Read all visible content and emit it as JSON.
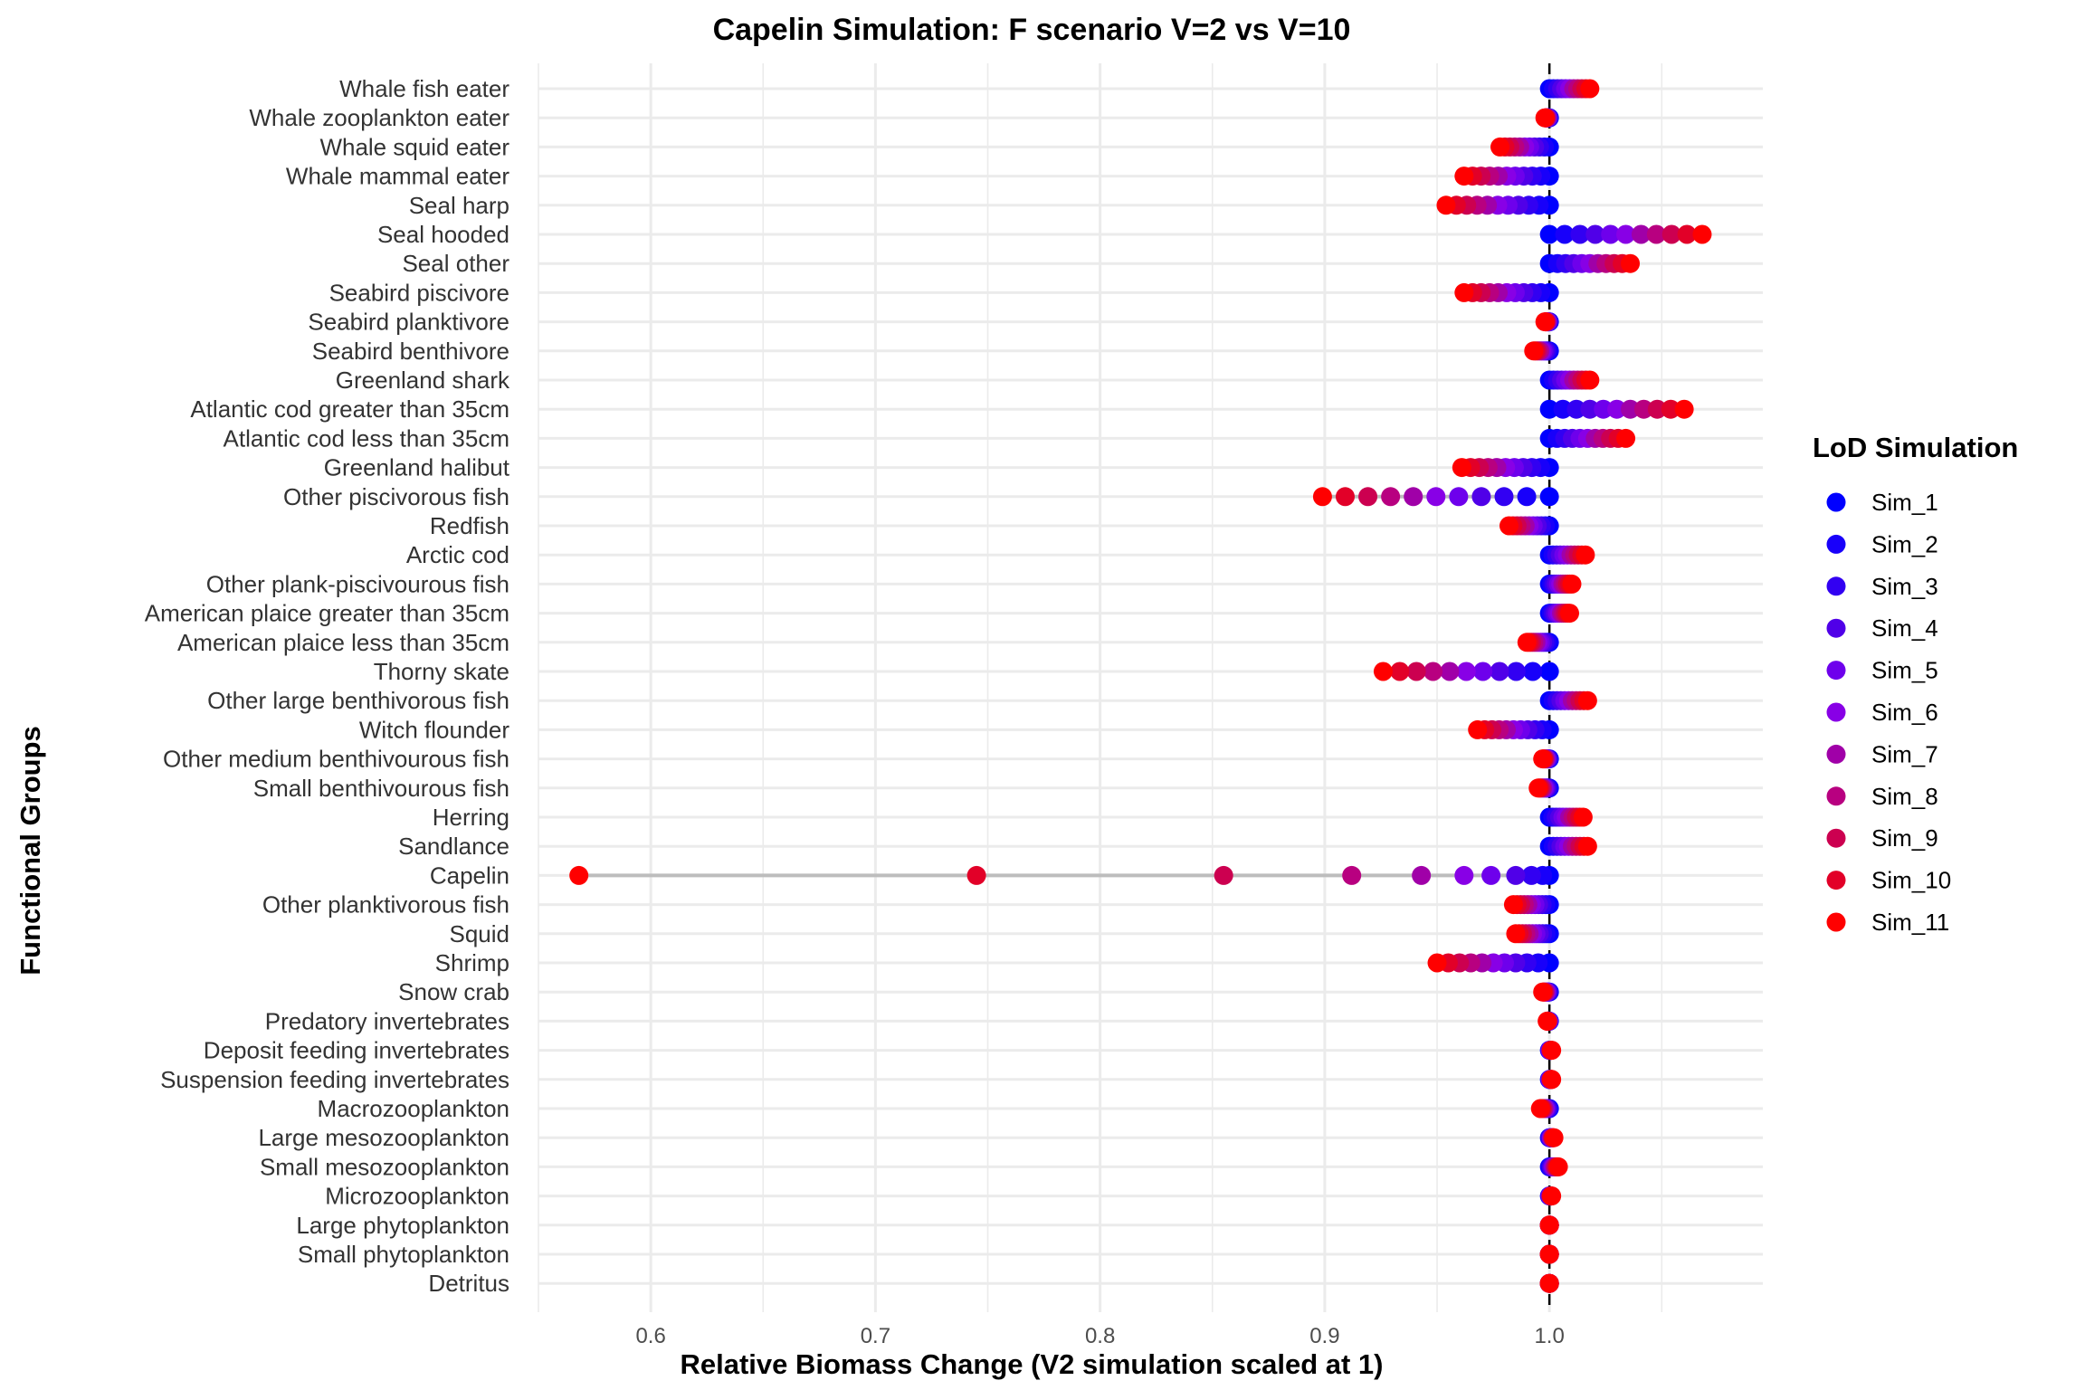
{
  "chart_data": {
    "type": "scatter",
    "title": "Capelin Simulation: F scenario V=2 vs V=10",
    "xlabel": "Relative Biomass Change (V2 simulation scaled at 1)",
    "ylabel": "Functional Groups",
    "xlim": [
      0.55,
      1.095
    ],
    "xticks": [
      0.6,
      0.7,
      0.8,
      0.9,
      1.0
    ],
    "xtick_labels": [
      "0.6",
      "0.7",
      "0.8",
      "0.9",
      "1.0"
    ],
    "reference_line_x": 1.0,
    "grid": true,
    "legend": {
      "title": "LoD Simulation",
      "position": "right",
      "items": [
        "Sim_1",
        "Sim_2",
        "Sim_3",
        "Sim_4",
        "Sim_5",
        "Sim_6",
        "Sim_7",
        "Sim_8",
        "Sim_9",
        "Sim_10",
        "Sim_11"
      ],
      "colors": [
        "#0000FF",
        "#1800FA",
        "#3200F2",
        "#5000E8",
        "#6E00EC",
        "#8800E6",
        "#A000A8",
        "#B80080",
        "#CC0050",
        "#E20028",
        "#FF0000"
      ]
    },
    "categories": [
      "Whale fish eater",
      "Whale zooplankton eater",
      "Whale squid eater",
      "Whale mammal eater",
      "Seal harp",
      "Seal hooded",
      "Seal other",
      "Seabird piscivore",
      "Seabird planktivore",
      "Seabird benthivore",
      "Greenland shark",
      "Atlantic cod greater than 35cm",
      "Atlantic cod less than 35cm",
      "Greenland halibut",
      "Other piscivorous fish",
      "Redfish",
      "Arctic cod",
      "Other plank-piscivourous fish",
      "American plaice greater than 35cm",
      "American plaice less than 35cm",
      "Thorny skate",
      "Other large benthivorous fish",
      "Witch flounder",
      "Other medium benthivourous fish",
      "Small benthivourous fish",
      "Herring",
      "Sandlance",
      "Capelin",
      "Other planktivorous fish",
      "Squid",
      "Shrimp",
      "Snow crab",
      "Predatory invertebrates",
      "Deposit feeding invertebrates",
      "Suspension feeding invertebrates",
      "Macrozooplankton",
      "Large mesozooplankton",
      "Small mesozooplankton",
      "Microzooplankton",
      "Large phytoplankton",
      "Small phytoplankton",
      "Detritus"
    ],
    "endpoints": [
      [
        1.0,
        1.018
      ],
      [
        0.998,
        1.0
      ],
      [
        0.978,
        1.0
      ],
      [
        0.962,
        1.0
      ],
      [
        0.954,
        1.0
      ],
      [
        1.0,
        1.068
      ],
      [
        1.0,
        1.036
      ],
      [
        0.962,
        1.0
      ],
      [
        0.998,
        1.0
      ],
      [
        0.993,
        1.0
      ],
      [
        1.0,
        1.018
      ],
      [
        1.0,
        1.06
      ],
      [
        1.0,
        1.034
      ],
      [
        0.961,
        1.0
      ],
      [
        0.899,
        1.0
      ],
      [
        0.982,
        1.0
      ],
      [
        1.0,
        1.016
      ],
      [
        1.0,
        1.01
      ],
      [
        1.0,
        1.009
      ],
      [
        0.99,
        1.0
      ],
      [
        0.926,
        1.0
      ],
      [
        1.0,
        1.017
      ],
      [
        0.968,
        1.0
      ],
      [
        0.997,
        1.0
      ],
      [
        0.995,
        1.0
      ],
      [
        1.0,
        1.015
      ],
      [
        1.0,
        1.017
      ],
      [
        0.568,
        1.0
      ],
      [
        0.984,
        1.0
      ],
      [
        0.985,
        1.0
      ],
      [
        0.95,
        1.0
      ],
      [
        0.997,
        1.0
      ],
      [
        0.999,
        1.0
      ],
      [
        1.0,
        1.001
      ],
      [
        1.0,
        1.001
      ],
      [
        0.996,
        1.0
      ],
      [
        1.0,
        1.002
      ],
      [
        1.0,
        1.004
      ],
      [
        1.0,
        1.001
      ],
      [
        1.0,
        1.0
      ],
      [
        1.0,
        1.0
      ],
      [
        1.0,
        1.0
      ]
    ],
    "capelin_values": [
      1.0,
      0.997,
      0.992,
      0.985,
      0.974,
      0.962,
      0.943,
      0.912,
      0.855,
      0.745,
      0.568
    ]
  }
}
